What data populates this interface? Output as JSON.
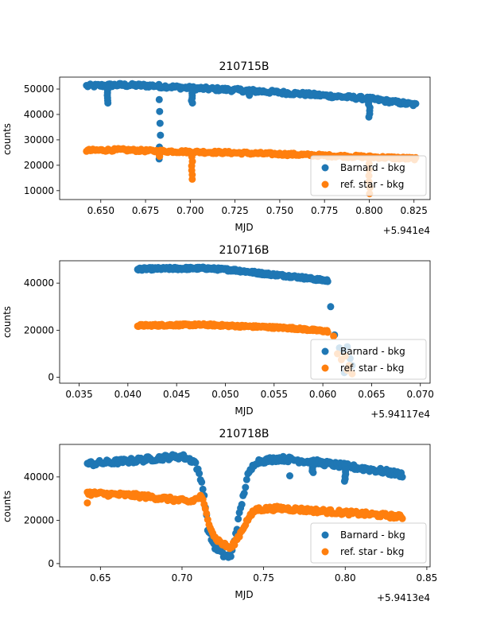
{
  "chart_data": [
    {
      "type": "scatter",
      "title": "210715B",
      "xlabel": "MJD",
      "ylabel": "counts",
      "x_offset_label": "+5.941e4",
      "xlim": [
        0.627,
        0.834
      ],
      "ylim": [
        6500,
        54700
      ],
      "xticks": [
        0.65,
        0.675,
        0.7,
        0.725,
        0.75,
        0.775,
        0.8,
        0.825
      ],
      "xtick_labels": [
        "0.650",
        "0.675",
        "0.700",
        "0.725",
        "0.750",
        "0.775",
        "0.800",
        "0.825"
      ],
      "yticks": [
        10000,
        20000,
        30000,
        40000,
        50000
      ],
      "ytick_labels": [
        "10000",
        "20000",
        "30000",
        "40000",
        "50000"
      ],
      "legend_position": "lower-right",
      "series": [
        {
          "name": "Barnard - bkg",
          "color": "#1f77b4",
          "trend": [
            [
              0.642,
              51200
            ],
            [
              0.66,
              51600
            ],
            [
              0.68,
              51300
            ],
            [
              0.7,
              50400
            ],
            [
              0.72,
              49800
            ],
            [
              0.74,
              49100
            ],
            [
              0.76,
              48200
            ],
            [
              0.78,
              47200
            ],
            [
              0.8,
              46200
            ],
            [
              0.826,
              43800
            ]
          ],
          "noise": 700,
          "dips": [
            [
              0.654,
              50500,
              44500
            ],
            [
              0.683,
              50500,
              22500
            ],
            [
              0.701,
              50200,
              44500
            ],
            [
              0.733,
              49800,
              47500
            ],
            [
              0.8,
              46500,
              39000
            ]
          ]
        },
        {
          "name": "ref. star - bkg",
          "color": "#ff7f0e",
          "trend": [
            [
              0.642,
              25800
            ],
            [
              0.66,
              26100
            ],
            [
              0.68,
              25600
            ],
            [
              0.7,
              25300
            ],
            [
              0.72,
              25000
            ],
            [
              0.74,
              24600
            ],
            [
              0.76,
              24200
            ],
            [
              0.78,
              23700
            ],
            [
              0.8,
              23300
            ],
            [
              0.826,
              22600
            ]
          ],
          "noise": 500,
          "dips": [
            [
              0.683,
              25000,
              23500
            ],
            [
              0.701,
              25000,
              14500
            ],
            [
              0.8,
              23000,
              8800
            ]
          ]
        }
      ]
    },
    {
      "type": "scatter",
      "title": "210716B",
      "xlabel": "MJD",
      "ylabel": "counts",
      "x_offset_label": "+5.94117e4",
      "xlim": [
        0.033,
        0.071
      ],
      "ylim": [
        -2500,
        49500
      ],
      "xticks": [
        0.035,
        0.04,
        0.045,
        0.05,
        0.055,
        0.06,
        0.065,
        0.07
      ],
      "xtick_labels": [
        "0.035",
        "0.040",
        "0.045",
        "0.050",
        "0.055",
        "0.060",
        "0.065",
        "0.070"
      ],
      "yticks": [
        0,
        20000,
        40000
      ],
      "ytick_labels": [
        "0",
        "20000",
        "40000"
      ],
      "legend_position": "lower-right",
      "series": [
        {
          "name": "Barnard - bkg",
          "color": "#1f77b4",
          "trend": [
            [
              0.041,
              46000
            ],
            [
              0.045,
              46200
            ],
            [
              0.048,
              46300
            ],
            [
              0.051,
              45500
            ],
            [
              0.054,
              44000
            ],
            [
              0.057,
              42800
            ],
            [
              0.0605,
              41000
            ]
          ],
          "noise": 550,
          "extra": [
            [
              0.0608,
              30000
            ],
            [
              0.0612,
              18000
            ],
            [
              0.0617,
              12500
            ],
            [
              0.0621,
              11000
            ],
            [
              0.0625,
              13000
            ],
            [
              0.0628,
              8000
            ],
            [
              0.063,
              5000
            ],
            [
              0.0622,
              2000
            ]
          ]
        },
        {
          "name": "ref. star - bkg",
          "color": "#ff7f0e",
          "trend": [
            [
              0.041,
              22000
            ],
            [
              0.045,
              22200
            ],
            [
              0.048,
              22300
            ],
            [
              0.051,
              21800
            ],
            [
              0.054,
              21400
            ],
            [
              0.057,
              20800
            ],
            [
              0.0605,
              19500
            ]
          ],
          "noise": 450,
          "extra": [
            [
              0.0611,
              17500
            ],
            [
              0.0615,
              10000
            ],
            [
              0.0619,
              7500
            ],
            [
              0.0623,
              9000
            ],
            [
              0.0627,
              5000
            ],
            [
              0.063,
              1500
            ],
            [
              0.0625,
              3000
            ]
          ]
        }
      ]
    },
    {
      "type": "scatter",
      "title": "210718B",
      "xlabel": "MJD",
      "ylabel": "counts",
      "x_offset_label": "+5.9413e4",
      "xlim": [
        0.625,
        0.852
      ],
      "ylim": [
        -1500,
        55000
      ],
      "xticks": [
        0.65,
        0.7,
        0.75,
        0.8,
        0.85
      ],
      "xtick_labels": [
        "0.65",
        "0.70",
        "0.75",
        "0.80",
        "0.85"
      ],
      "yticks": [
        0,
        20000,
        40000
      ],
      "ytick_labels": [
        "0",
        "20000",
        "40000"
      ],
      "legend_position": "lower-right",
      "series": [
        {
          "name": "Barnard - bkg",
          "color": "#1f77b4",
          "trend": [
            [
              0.642,
              46000
            ],
            [
              0.67,
              47500
            ],
            [
              0.69,
              49000
            ],
            [
              0.7,
              49500
            ],
            [
              0.708,
              47000
            ],
            [
              0.713,
              35000
            ],
            [
              0.716,
              15000
            ],
            [
              0.72,
              8000
            ],
            [
              0.725,
              4000
            ],
            [
              0.73,
              3000
            ],
            [
              0.735,
              22000
            ],
            [
              0.74,
              40000
            ],
            [
              0.745,
              47000
            ],
            [
              0.76,
              48500
            ],
            [
              0.78,
              47000
            ],
            [
              0.8,
              45000
            ],
            [
              0.82,
              43000
            ],
            [
              0.835,
              41000
            ]
          ],
          "noise": 1200,
          "dips": [
            [
              0.78,
              46500,
              42000
            ],
            [
              0.8,
              44500,
              38000
            ]
          ],
          "extra": [
            [
              0.766,
              40500
            ]
          ]
        },
        {
          "name": "ref. star - bkg",
          "color": "#ff7f0e",
          "trend": [
            [
              0.642,
              32500
            ],
            [
              0.67,
              31500
            ],
            [
              0.69,
              30000
            ],
            [
              0.705,
              28500
            ],
            [
              0.712,
              31000
            ],
            [
              0.716,
              20000
            ],
            [
              0.72,
              12000
            ],
            [
              0.725,
              9000
            ],
            [
              0.73,
              7000
            ],
            [
              0.735,
              13000
            ],
            [
              0.74,
              20000
            ],
            [
              0.745,
              25000
            ],
            [
              0.76,
              25500
            ],
            [
              0.78,
              24500
            ],
            [
              0.8,
              23500
            ],
            [
              0.82,
              22500
            ],
            [
              0.835,
              21500
            ]
          ],
          "noise": 1000,
          "extra": [
            [
              0.642,
              28000
            ]
          ]
        }
      ]
    }
  ]
}
